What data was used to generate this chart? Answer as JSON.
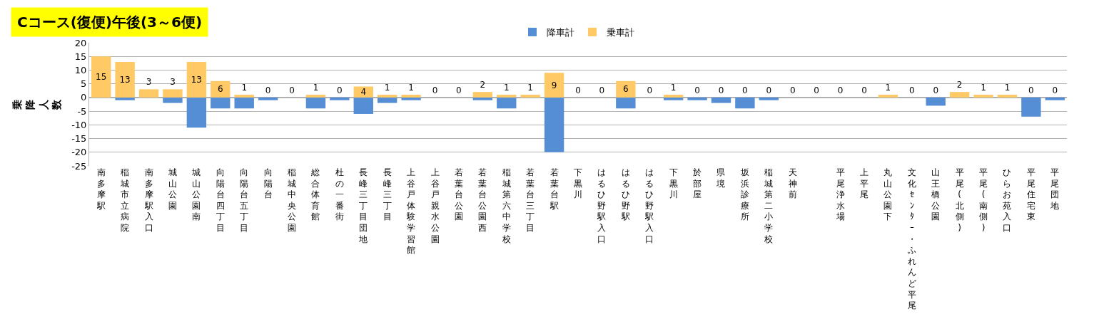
{
  "chart_data": {
    "type": "bar",
    "stacked": true,
    "title": "Cコース(復便)午後(3～6便)",
    "ylabel": "乗降人数",
    "categories": [
      "南多摩駅",
      "稲城市立病院",
      "南多摩駅入口",
      "城山公園",
      "城山公園南",
      "向陽台四丁目",
      "向陽台五丁目",
      "向陽台",
      "稲城中央公園",
      "総合体育館",
      "杜の一番街",
      "長峰三丁目団地",
      "長峰三丁目",
      "上谷戸体験学習館",
      "上谷戸親水公園",
      "若葉台公園",
      "若葉台公園西",
      "稲城第六中学校",
      "若葉台三丁目",
      "若葉台駅",
      "下黒川",
      "はるひ野駅入口",
      "はるひ野駅",
      "はるひ野駅入口",
      "下黒川",
      "於部屋",
      "県境",
      "坂浜診療所",
      "稲城第二小学校",
      "天神前",
      null,
      "平尾浄水場",
      "上平尾",
      "丸山公園下",
      "文化ｾﾝﾀｰ・ふれんど平尾",
      "山王橋公園",
      "平尾(北側)",
      "平尾(南側)",
      "ひらお苑入口",
      "平尾住宅東",
      "平尾団地"
    ],
    "series": [
      {
        "name": "降車計",
        "color": "#558ed5",
        "values": [
          0,
          -1,
          0,
          -2,
          -11,
          -4,
          -4,
          -1,
          0,
          -4,
          -1,
          -6,
          -2,
          -1,
          0,
          0,
          -1,
          -4,
          0,
          -20,
          0,
          0,
          -4,
          0,
          -1,
          -1,
          -2,
          -4,
          -1,
          0,
          0,
          0,
          0,
          0,
          0,
          -3,
          0,
          0,
          0,
          -7,
          -1
        ]
      },
      {
        "name": "乗車計",
        "color": "#ffc966",
        "values": [
          15,
          13,
          3,
          3,
          13,
          6,
          1,
          0,
          0,
          1,
          0,
          4,
          1,
          1,
          0,
          0,
          2,
          1,
          1,
          9,
          0,
          0,
          6,
          0,
          1,
          0,
          0,
          0,
          0,
          0,
          0,
          0,
          0,
          1,
          0,
          0,
          2,
          1,
          1,
          0,
          0
        ],
        "value_labels": [
          "15",
          "13",
          "3",
          "3",
          "13",
          "6",
          "1",
          "0",
          "0",
          "1",
          "0",
          "4",
          "1",
          "1",
          "0",
          "0",
          "2",
          "1",
          "1",
          "9",
          "0",
          "0",
          "6",
          "0",
          "1",
          "0",
          "0",
          "0",
          "0",
          "0",
          "0",
          "0",
          "0",
          "1",
          "0",
          "0",
          "2",
          "1",
          "1",
          "0",
          "0"
        ]
      }
    ],
    "ylim": [
      -25,
      20
    ],
    "yticks": [
      -25,
      -20,
      -15,
      -10,
      -5,
      0,
      5,
      10,
      15,
      20
    ],
    "grid": "y",
    "legend": "top"
  }
}
